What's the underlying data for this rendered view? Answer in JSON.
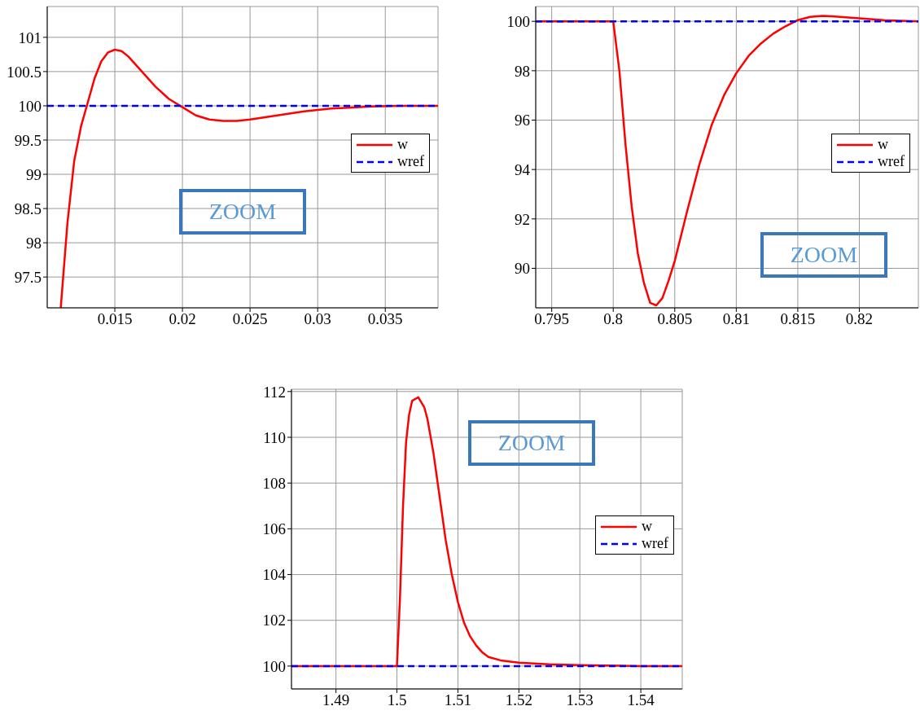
{
  "chart_data": [
    {
      "type": "line",
      "xlim": [
        0.01,
        0.0389
      ],
      "ylim": [
        97.05,
        101.45
      ],
      "xticks": [
        0.015,
        0.02,
        0.025,
        0.03,
        0.035
      ],
      "yticks": [
        97.5,
        98,
        98.5,
        99,
        99.5,
        100,
        100.5,
        101
      ],
      "grid": true,
      "legend": "right",
      "annotations": [
        "ZOOM"
      ],
      "series": [
        {
          "name": "w",
          "color": "#ff0000",
          "line_style": "solid",
          "x": [
            0.011,
            0.0115,
            0.012,
            0.0125,
            0.013,
            0.0135,
            0.014,
            0.0145,
            0.015,
            0.0155,
            0.016,
            0.017,
            0.018,
            0.019,
            0.02,
            0.021,
            0.022,
            0.023,
            0.024,
            0.025,
            0.026,
            0.027,
            0.028,
            0.029,
            0.03,
            0.031,
            0.032,
            0.034,
            0.036,
            0.0389
          ],
          "values": [
            97.05,
            98.3,
            99.2,
            99.7,
            100.05,
            100.4,
            100.65,
            100.78,
            100.82,
            100.8,
            100.72,
            100.5,
            100.28,
            100.1,
            99.98,
            99.86,
            99.8,
            99.78,
            99.78,
            99.8,
            99.83,
            99.86,
            99.89,
            99.92,
            99.94,
            99.96,
            99.97,
            99.99,
            100,
            100
          ]
        },
        {
          "name": "wref",
          "color": "#0000ff",
          "line_style": "dashed",
          "x": [
            0.01,
            0.0389
          ],
          "values": [
            100,
            100
          ]
        }
      ]
    },
    {
      "type": "line",
      "xlim": [
        0.7937,
        0.8248
      ],
      "ylim": [
        88.4,
        100.6
      ],
      "xticks": [
        0.795,
        0.8,
        0.805,
        0.81,
        0.815,
        0.82
      ],
      "yticks": [
        90,
        92,
        94,
        96,
        98,
        100
      ],
      "grid": true,
      "legend": "right",
      "annotations": [
        "ZOOM"
      ],
      "series": [
        {
          "name": "w",
          "color": "#ff0000",
          "line_style": "solid",
          "x": [
            0.7937,
            0.8,
            0.8005,
            0.801,
            0.8015,
            0.802,
            0.8025,
            0.803,
            0.8035,
            0.804,
            0.8045,
            0.805,
            0.806,
            0.807,
            0.808,
            0.809,
            0.81,
            0.811,
            0.812,
            0.813,
            0.814,
            0.815,
            0.816,
            0.817,
            0.818,
            0.82,
            0.822,
            0.8248
          ],
          "values": [
            100,
            100,
            98,
            95,
            92.5,
            90.6,
            89.4,
            88.6,
            88.5,
            88.8,
            89.5,
            90.3,
            92.3,
            94.2,
            95.8,
            97,
            97.9,
            98.6,
            99.1,
            99.5,
            99.8,
            100.05,
            100.18,
            100.22,
            100.2,
            100.12,
            100.05,
            100
          ]
        },
        {
          "name": "wref",
          "color": "#0000ff",
          "line_style": "dashed",
          "x": [
            0.7937,
            0.8248
          ],
          "values": [
            100,
            100
          ]
        }
      ]
    },
    {
      "type": "line",
      "xlim": [
        1.4827,
        1.5468
      ],
      "ylim": [
        99,
        112.1
      ],
      "xticks": [
        1.49,
        1.5,
        1.51,
        1.52,
        1.53,
        1.54
      ],
      "yticks": [
        100,
        102,
        104,
        106,
        108,
        110,
        112
      ],
      "grid": true,
      "legend": "right",
      "annotations": [
        "ZOOM"
      ],
      "series": [
        {
          "name": "w",
          "color": "#ff0000",
          "line_style": "solid",
          "x": [
            1.4827,
            1.5,
            1.5005,
            1.501,
            1.5015,
            1.502,
            1.5025,
            1.5035,
            1.5045,
            1.505,
            1.506,
            1.507,
            1.508,
            1.509,
            1.51,
            1.511,
            1.512,
            1.513,
            1.514,
            1.515,
            1.517,
            1.52,
            1.525,
            1.53,
            1.54,
            1.5468
          ],
          "values": [
            100,
            100,
            103,
            107,
            109.8,
            111,
            111.6,
            111.75,
            111.3,
            110.8,
            109.3,
            107.4,
            105.5,
            104,
            102.8,
            101.9,
            101.3,
            100.9,
            100.6,
            100.4,
            100.25,
            100.15,
            100.08,
            100.04,
            100,
            100
          ]
        },
        {
          "name": "wref",
          "color": "#0000ff",
          "line_style": "dashed",
          "x": [
            1.4827,
            1.5468
          ],
          "values": [
            100,
            100
          ]
        }
      ]
    }
  ]
}
